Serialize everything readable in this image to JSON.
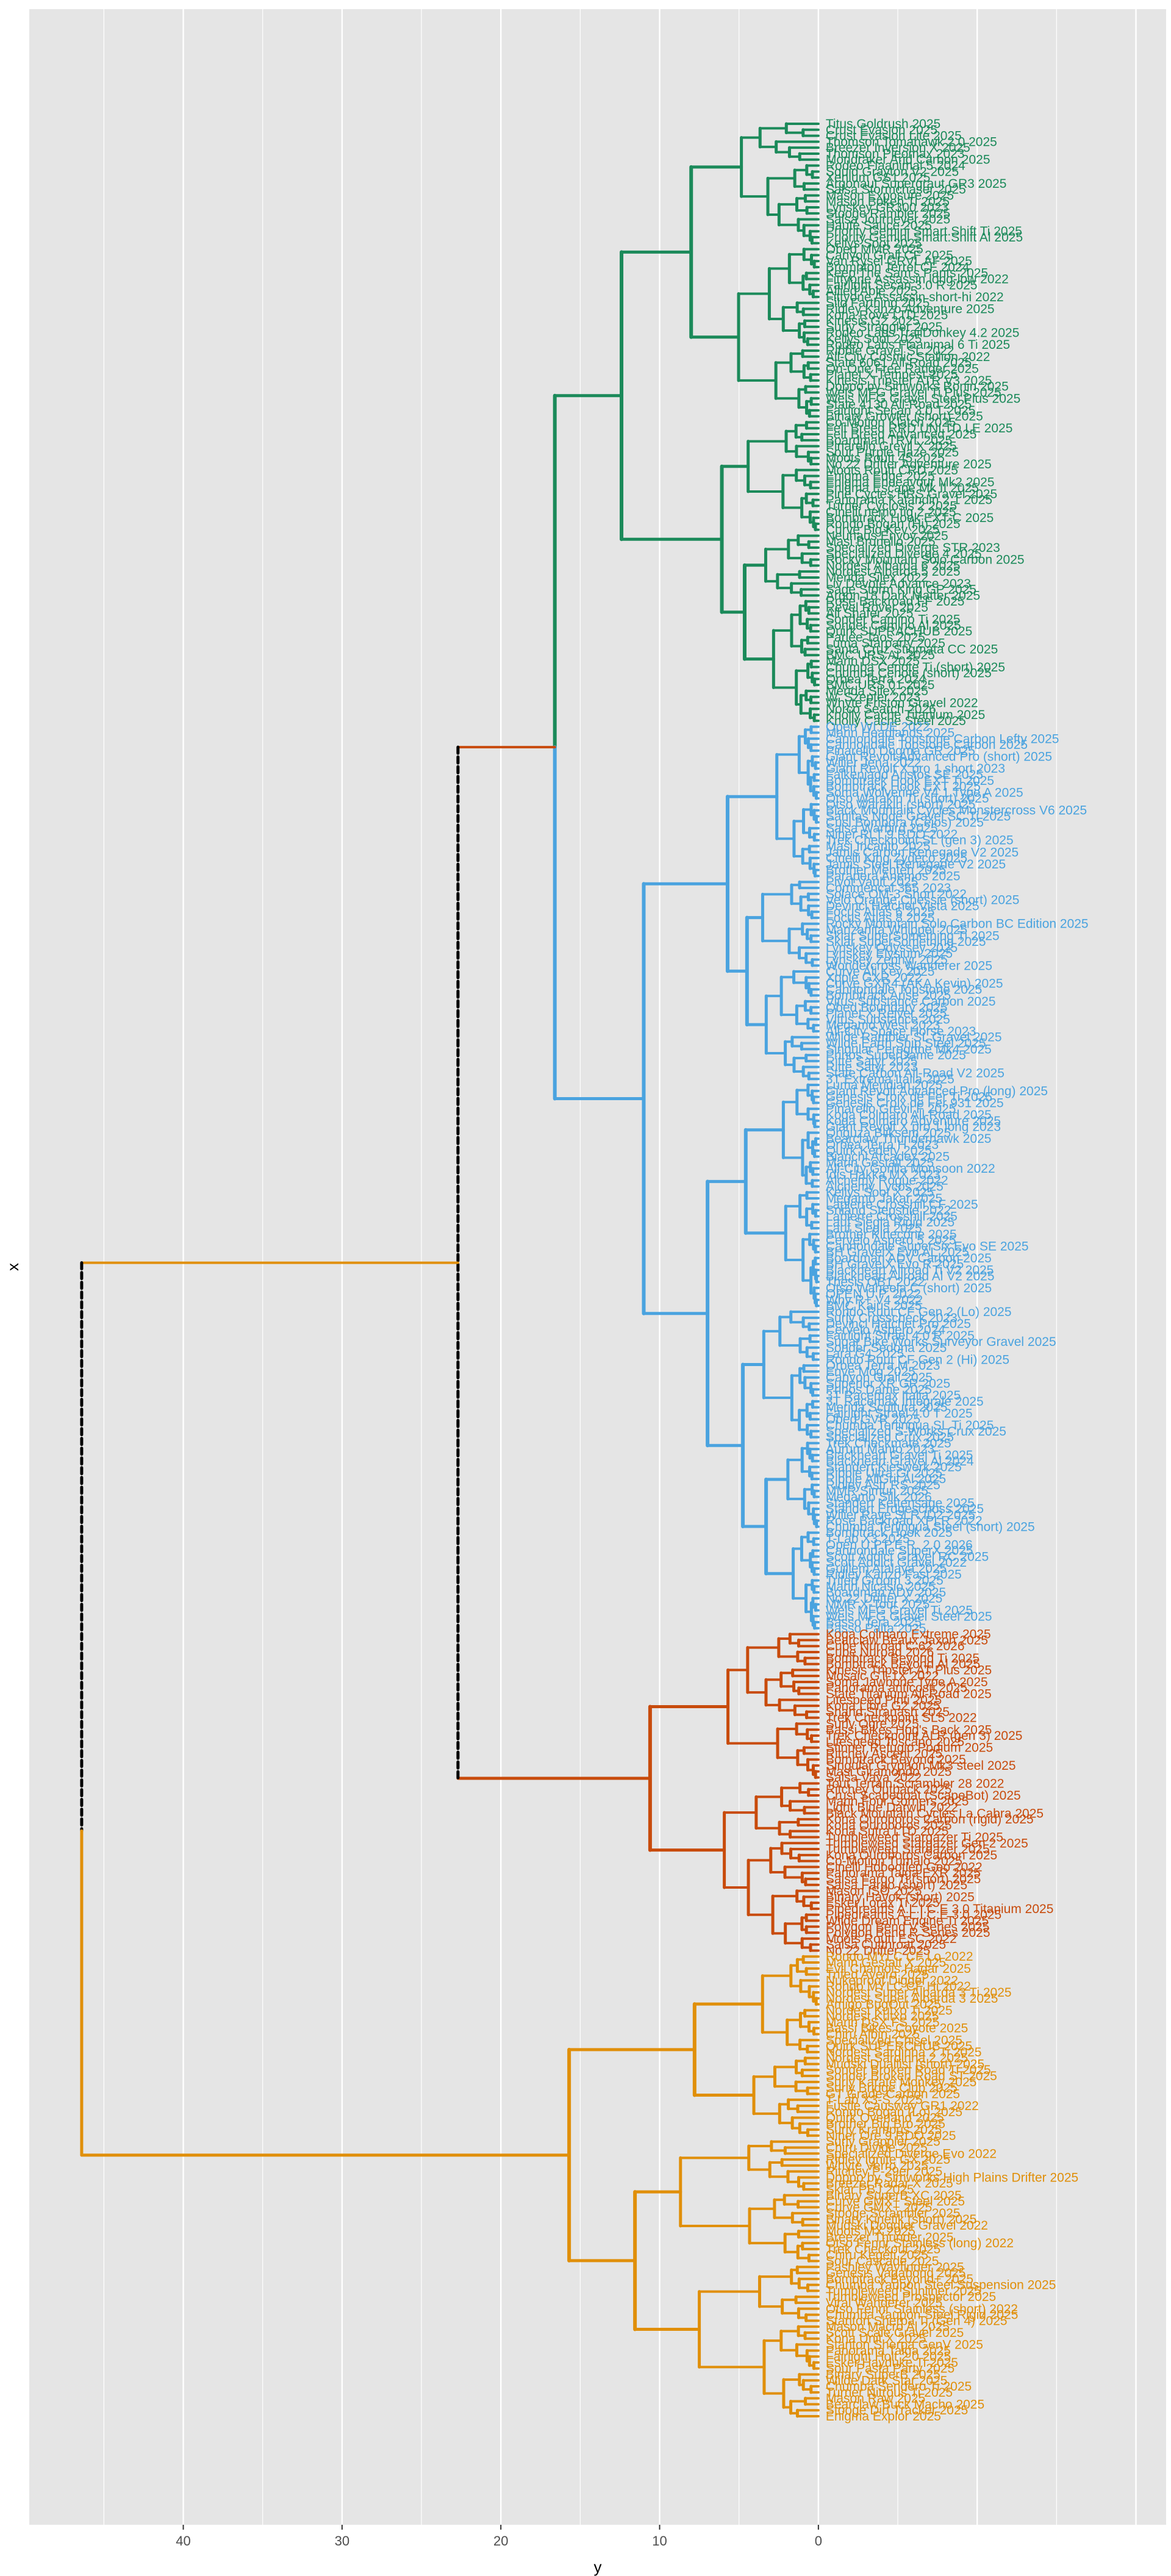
{
  "chart_data": {
    "type": "dendrogram",
    "orientation": "horizontal",
    "title": "",
    "xlabel": "y",
    "ylabel": "x",
    "x_axis_reversed": true,
    "xlim": [
      49.7,
      -21.9
    ],
    "x_ticks": [
      40,
      30,
      20,
      10,
      0
    ],
    "grid": true,
    "legend": "none",
    "colors": {
      "green": "#1b8a5a",
      "blue": "#4aa3df",
      "red": "#c84b0c",
      "orange": "#e08f0a",
      "connector": "#000000",
      "panel_bg": "#e5e5e5",
      "grid": "#ffffff"
    },
    "top_merges": {
      "root_height": 46.4,
      "root_connector": "dashed",
      "upper_height": 22.7,
      "upper_connector": "dashed",
      "green_blue_height": 16.6,
      "green_height": 12.4,
      "blue_height": 11.0,
      "red_height": 10.6,
      "orange_height": 15.7
    },
    "clusters": [
      {
        "name": "green",
        "color_key": "green",
        "height": 12.4,
        "leaves": [
          "Titus Goldrush 2025",
          "Crust Evasion 2025",
          "Crust Evasion Lite 2025",
          "Thomson Tomahawk 2.0 2025",
          "Breezer Inversion X 2025",
          "Thomson Pleomax 2023",
          "Mondraker Arid Carbon 2025",
          "Rodeo Flaanimal 5 2024",
          "Squid Grayton V2 2025",
          "Xenium GS1 2025",
          "Argonaut Supergraut GR3 2025",
          "Salsa Stormchaser 2025",
          "Mason Exposure 2025",
          "Mason Bokeh Ti 2025",
          "Lynskey GR300 2023",
          "Stooge Rambler 2025",
          "Salsa Journeyer 2025",
          "Haute Sauce 2025",
          "Priority Gemini Smart.Shift Ti 2025",
          "Priority Gemini Smart.Shift Al 2025",
          "Kellys Soot 2025",
          "Obed MMR 2025",
          "Canyon Grail CF 2025",
          "Van Rysel GRVL AF 2025",
          "Brompton Terrel CF 2024",
          "Keep The Sam's Pants 2025",
          "Fittyone Assassin long-low 2022",
          "Fairlight Secan 3.0 R 2025",
          "Allied Able 2025",
          "Fittyone Assassin short-hi 2022",
          "Silo Farthing 2025",
          "Ridley Kanzo Adventure 2025",
          "Kona Rove LTD 2025",
          "Kinesis G2 2025",
          "Surly Straggler 2025",
          "Rodeo Labs TrailDonkey 4.2 2025",
          "Kellys Soot 2025",
          "Rodeo Labs Flaanimal 6 Ti 2025",
          "Ribble Gravel SL 2022",
          "All-City Cosmic Stallion 2022",
          "State 6061 All-Road 2025",
          "On-One Free Ranger 2025",
          "Planet X Tempest 2025",
          "Kinesis Tripster ATR V3 2025",
          "Doppo by Simworks Ronin 2025",
          "Wels MFG Gravel Ti Plus 2025",
          "Wels MFG Gravel Steel Plus 2025",
          "State 4130 All-Road 2025",
          "Fairlight Secan 3.0 T 2025",
          "Binary Growler (short) 2025",
          "Co-Motion Klatch 2025",
          "Felt Breed RRD UNLTD LE 2025",
          "Felt Breed Advanced 2025",
          "Boardman TRVL 2025",
          "Pinarello Grevil X 2025",
          "Sour Purple Haze 2025",
          "Moots Routt 45 2025",
          "No.22 Drifter Adventure 2025",
          "Moots Routt CRD 2025",
          "Enigma Edge 2025",
          "Enigma Endeavour Mk2 2025",
          "Enigma Escape Mk II 2025",
          "Pine Cycles HRS Gravel 2025",
          "Panorama Katahdin 2.1 2025",
          "Turner Cyclosis 2 2025",
          "Cinelli nemo tig 2 2025",
          "Bombtrack Hook EXT-C 2025",
          "Rondo Bogan (Hi) 2025",
          "Curve Big Kev 2025",
          "Neuhaus Envoy 2025",
          "Masi Brunello 2025",
          "Specialized Diverge STR 2023",
          "Specialized Diverge 4 2025",
          "Rocky Mountain Solo Carbon 2025",
          "Nordest Albarda 6 2025",
          "Nordest Albarda 5 2025",
          "Merida Silex 2022",
          "Liv Devote Advance 2023",
          "Sage Storm King GP 2025",
          "Argon 18 Dark Matter 2025",
          "Rose Backroad FF 2025",
          "Revel Rover 2025",
          "All Shafer 2025",
          "Sonder Camino Ti 2025",
          "Sonder Camino Al 2025",
          "Quirk SUPRACHUB 2025",
          "Parlee Taos 2025",
          "Luma Starparty 2025",
          "Santa Cruz Stigmata CC 2025",
          "BMC URS AL 2025",
          "Marin DSX 2025",
          "Chumba Cenote Ti (short) 2025",
          "Chumba Cenote (short) 2025",
          "Orbea Terra 2024",
          "BMC URS 01 2025",
          "Merida Silex 2025",
          "W. Szepter 2023",
          "Whyte Friston Gravel 2022",
          "Norco Search 2026",
          "Knolly Cache Titanium 2025",
          "Knolly Cache Steel 2025"
        ]
      },
      {
        "name": "blue",
        "color_key": "blue",
        "height": 11.0,
        "leaves": [
          "Open WI.DE 2022",
          "Marin Headlands 2025",
          "Cannondale Topstone Carbon Lefty 2025",
          "Cannondale Topstone Carbon 2025",
          "Pinarello Dogma GR 2025",
          "Giant Revolt Advanced Pro (short) 2025",
          "Wilier Jena 2022",
          "Giant Revolt X pro 1 short 2023",
          "Falkenjagd Aristos SE 2025",
          "Bombtrack Hook EXT Ti 2025",
          "Bombtrack Hook EXT 2025",
          "Soma Wolverine V4.1 Type A 2025",
          "Otso Warakin Ti (short) 2025",
          "Otso Warakin (short) 2025",
          "Black Mountain Cycles Monstercross V6 2025",
          "Sanitas Node Gravel SC Ti 2025",
          "Cusi Bombora (Ceios) 2025",
          "Salsa Warbird 2025",
          "Niner RLT 9 RDO 2022",
          "Trek Checkpoint SL (gen 3) 2025",
          "Masi Incanto 2025",
          "Jamis Carbon Renegade V2 2025",
          "Cinelli King Zydeco 2025",
          "Jamis Steel Renegade V2 2025",
          "Brother Mehteh 2025",
          "Parapera Anemos 2025",
          "Pivot Vault 2025",
          "Commencal 365 2023",
          "Solace OM-3 Short 2022",
          "Velo Orange Chessie (short) 2025",
          "Devinci Hatchet Vista 2025",
          "Focus Atlas 6 2025",
          "Focus Atlas 8 2025",
          "Rocky Mountain Solo Carbon BC Edition 2025",
          "Manzanita Whippet 2025",
          "Sklar SuperSomething Ti 2025",
          "Sklar SuperSomething 2025",
          "Lynskey Odyssey 2025",
          "Lynskey Elysium 2025",
          "Lynskey Zephyr 2025",
          "Wondercross Wanderer 2025",
          "Curve Ali Key 2025",
          "Xpple GXR 2022",
          "Curve GXR4 (AKA Kevin) 2025",
          "Cannondale Topstone 2025",
          "Bombtrack Arise 2025",
          "Vitus Substance Carbon 2025",
          "Obed Boundary 2025",
          "Planet X Reiver 2025",
          "Vitus Substance 2025",
          "Megamo West 2023",
          "All-City Space Horse 2023",
          "Wilde Rambler SL Gravel 2025",
          "Wilde Earth Ship Steel 2025",
          "Singular Peregrine Mk4 2025",
          "Prinos SuperDame 2025",
          "Ritte Satyr 2025",
          "Ritte Satyr 2023",
          "State Carbon All-Road V2 2025",
          "3T Extrema Italia 2025",
          "Luma Meridian 2025",
          "Giant Revolt Advanced Pro (long) 2025",
          "Genesis Croix de Fer Ti 2025",
          "Genesis Croix de Fer 931 2025",
          "Pinarello Grevil F 2025",
          "Koga Colmaro All-Road 2025",
          "Koga Colmaro Adventure 2025",
          "Giant Revolt X pro 1 long 2023",
          "Onguza Bliksem 2025",
          "Bearclaw Thunderhawk 2025",
          "Orbea Terra H 2023",
          "Quirk Kedety 2025",
          "Bianchi Arcadex 2025",
          "Marin Gestalt 2025",
          "All-City Gorilla Monsoon 2022",
          "Idis Hakka MX 2023",
          "Alchemy Rogue 2022",
          "Alchemy Lycos 2025",
          "Kellys Soot X 2025",
          "Megamo Jakar 2025",
          "Lapierre Crosshill CF 2025",
          "Sniand Stepshie 2022",
          "Lapierre Crosshill 2025",
          "Lauf Siegla Rigid 2025",
          "Lauf Siegla 2025",
          "Brother Kinecone 2025",
          "Cervelo Aspero 5 2025",
          "Cannondale SuperSix Evo SE 2025",
          "BH GravelX Evo AL 2025",
          "Boardman ADV Carbon 2025",
          "BH GravelX Evo R 2025",
          "Blackheart Allroad Ti V2 2025",
          "Blackheart Allroad Al V2 2025",
          "Thesis OB1 2022",
          "Otso Waheela C (short) 2025",
          "OPEN U.P. 2022",
          "Why R+ V4 2022",
          "BMC Kaius 2025",
          "Rondo Ruut CF Gen 2 (Lo) 2025",
          "Surly Crosscheck 2023",
          "Devinci Hatchet Pro 2025",
          "Cervelo Aspero 2024",
          "Fairlight Strael 4.0 R 2025",
          "Sugar Bike Works Surveyor Gravel 2025",
          "Sonder Sedona 2025",
          "Lara G4 2025",
          "Rondo Ruut CF Gen 2 (Hi) 2025",
          "Orbea Terra M 2023",
          "Enve Mog 2025",
          "Canyon Grail 2025",
          "Superior XR GR 2025",
          "Prinos Dame 2025",
          "3T Racemax Italia 2025",
          "3T Racemax Integrale 2025",
          "Merida Scultura 2025",
          "Fairlight Strael 4.0 T 2025",
          "Obed GVR 2025",
          "Chumba Terlingua SL Ti 2025",
          "Specialized S-Works Crux 2025",
          "Specialized Crux 2025",
          "Trek Checkmate 2025",
          "Aurum Manto 2023",
          "Blackheart Gravel Ti 2025",
          "Blackheart Gravel Al 2024",
          "Standert Kieswerk 2025",
          "Ribble Ultra Gr 2025",
          "Ribble AllGrit Al 2025",
          "Ridley Astr RS 2025",
          "MMR Simun 2025",
          "Megamo Silk 2026",
          "Standert Kettensage 2025",
          "Standert Erdgeschoss 2025",
          "Wilier Rave SLR ID2 2025",
          "Rose Backroad XPLR 2022",
          "Chumba Terlingua Steel (short) 2025",
          "Bombtrack Hook 2025",
          "T-Lab X3 2025",
          "Open U.P.P.E.R. 2.0 2026",
          "Cannondale SuperX 2025",
          "Scott Addict Gravel RC 2025",
          "Scott Addict Gravel 2022",
          "Guillem Atalaya 2025",
          "Ridley Kanzo Fast 2025",
          "Trifed Groom 3 2025",
          "Marin Nicasio 2025",
          "Boardman ADV 2025",
          "No.22 Drifter X 2025",
          "MMR X-Tour 2025",
          "Wels MFG Gravel Ti 2025",
          "Wels MFG Gravel Steel 2025",
          "Basso Tera 2025",
          "Basso Palta 2025"
        ]
      },
      {
        "name": "red",
        "color_key": "red",
        "height": 10.6,
        "leaves": [
          "Koga Colmaro Extreme 2025",
          "Bearclaw Beaux Jaxon 2025",
          "Cube Nuroad C:62 2026",
          "Cube Nuroad 2026",
          "Bombtrack Beyond Ti 2025",
          "Bombtrack Beyond Al 2025",
          "Kinesis Tripster AT Plus 2025",
          "Mosaic GT-1X 2022",
          "Soma Jawbone Type A 2025",
          "Panorama anticosti 2025",
          "State Titanium All-Road 2025",
          "Litespeed Pinti 2025",
          "Kona Libre G2 2025",
          "Shand Stranash 2025",
          "Trek Checkpoint SL5 2022",
          "Surly Ogre 2025",
          "Bassi Bikes Hog's Back 2025",
          "Trek Checkpoint ALR (gen 3) 2025",
          "Litespeed Toscano 2025",
          "Stinner Refugio Podium 2025",
          "Ritchey Ascent 2025",
          "Bombtrack Beyond 2025",
          "Singular Gryphon Mk3 steel 2025",
          "Masi Giramondo 2025",
          "Salsa Vaya 2022",
          "Tout Terrain Scrambler 28 2022",
          "Ritchey Outback 2025",
          "Crust Scapegoat (ScapeBot) 2025",
          "Marin Four Corners 2025",
          "Light Blue Darwin 2022",
          "Black Mountain Cycles La Cabra 2025",
          "Kona Ouroboros Carbon (rigid) 2025",
          "Kona Ouroboros 2025",
          "Kona Sutra LTD 2025",
          "Tumbleweed Stargazer Ti 2025",
          "Tumbleweed Stargazer Gen 2 2025",
          "Tumbleweed Stargazer 2025",
          "Kona Ouroboros Carbon 2025",
          "Co-Motion Tumalo 2025",
          "Cinelli Hobootleg Geo 2022",
          "Panorama Taiga EXR 2025",
          "Salsa Fargo Ti (short) 2025",
          "Salsa Fargo (short) 2025",
          "Mason ISO 2025",
          "Binary Havok (short) 2025",
          "Esker Lorax Ti 2025",
          "Pipedreams A.L.I.C.E 3.0 Titanium 2025",
          "Pipedreams A.L.I.C.E 3.0 2025",
          "Wilde Dream Engine Ti 2025",
          "Polygon Bend V Series 2025",
          "Polygon Bend R Series 2025",
          "Moots Routt ESC 2022",
          "Salsa Cutthroat 2025",
          "No.22 Drifter 2025"
        ]
      },
      {
        "name": "orange",
        "color_key": "orange",
        "height": 15.7,
        "leaves": [
          "Rondo MYLC CF Lo 2022",
          "Marin Gestalt X 2025",
          "Evil Chamois Hagar 2025",
          "Trifed Aveiro 2025",
          "Nukeproof Digger 2022",
          "Rondo MYLC CF Hi 2022",
          "Nordest Super Albarda 3 Ti 2025",
          "Nordest Super Albarda 3 2025",
          "Amigo BugOut 2025",
          "Nordest Kutxo Ti 2025",
          "Nordest Kutxo 2025",
          "Marin DSX FS 2025",
          "Bassi Bikes Coyote 2025",
          "Chiru Albin 2025",
          "Specialized Chisel 2025",
          "Quirk SUPERCHUB 2025",
          "Nordest Sardinha 2 Ti 2025",
          "Nordest Sardinha 2 2025",
          "Mudski Duallist (short) 2025",
          "Sonder Broken Road Ti 2025",
          "Sonder Broken Road ST 2025",
          "Surly Karate Monkey 2025",
          "Surly Bridge Club 2025",
          "GT Grade Carbon 2025",
          "T-Lab X3-S 2025",
          "Fustle Causway GR1 2022",
          "Rondo Bogan (Lo) 2025",
          "Quirk Overland 2025",
          "Brother Big Bro 2025",
          "Surly Krampus 2025",
          "Niner Ore 9 RDO 2025",
          "Surly Grappler 2025",
          "Chiru Divide 2025",
          "Specialized Diverge Evo 2022",
          "Ridley Ignite GX 2025",
          "Whyte Verro 2025",
          "Ritchey P-29er 2025",
          "Doppo by Simworks High Plains Drifter 2025",
          "Breezer Radar X 2025",
          "Sklar PBJ 2025",
          "Binary SuperB XC 2025",
          "Curve GMX+ Steel 2025",
          "Curve GMX+ 2025",
          "Stooge Scrambler 2025",
          "Binary Kinetik (short) 2025",
          "Mudski Doggler Gravel 2022",
          "Moots MX 2025",
          "Breezer Thunder 2025",
          "Otso Fenrir Stainless (long) 2022",
          "Trek Checkout 2025",
          "Chiru Kegeti 2025",
          "Sour Cascade 2025",
          "Pashley Wayfinder 2025",
          "Genesis Vagabond 2025",
          "Bombtrack Beyond+ 2025",
          "Chumba Yaupon Steel Suspension 2025",
          "Tumbleweed Sunliner 2025",
          "Tumbleweed Prospector 2025",
          "Viral Wanderer 2025",
          "Otso Fenrir Stainless (short) 2022",
          "Chumba Yaupon Steel Rigid 2025",
          "Stanton Sherpa Ti (Gen 4) 2025",
          "Mason Macro Al 2025",
          "Scott Scale Gravel 2025",
          "Kona Unit X 2025",
          "Stanton Sherpa GenV 2025",
          "Panorama Taiga 2025",
          "Fairlight Holt 2.0 2025",
          "Esker Hayduke Ti 2025",
          "Sour Pasta Party 2025",
          "Binary SuperB 2025",
          "Wilde Dark Star 2025",
          "Chumba Sendero Ti 2025",
          "Turner Nitrous Ti 2025",
          "Mason Raw 2025",
          "Bearclaw Buck Macho 2025",
          "Stooge Dirt Tracker 2025",
          "Enigma Explor 2025"
        ]
      }
    ]
  }
}
